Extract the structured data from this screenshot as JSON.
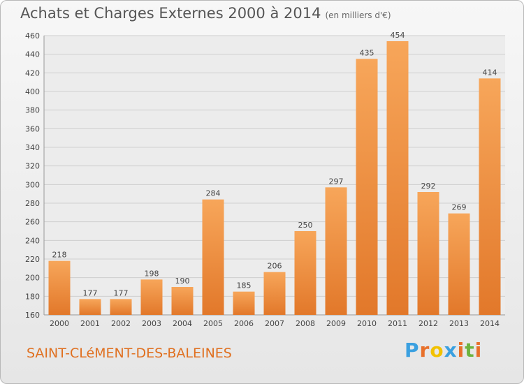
{
  "header": {
    "title": "Achats et Charges Externes 2000 à 2014",
    "unit": "(en milliers d'€)"
  },
  "footer": {
    "commune": "SAINT-CLéMENT-DES-BALEINES",
    "brand": "Proxiti",
    "brand_colors": [
      "#3aa0e0",
      "#e8702a",
      "#f2c200",
      "#3aa0e0",
      "#e8702a",
      "#6db33f",
      "#e8702a"
    ]
  },
  "colors": {
    "bar_light": "#f7a65a",
    "bar_dark": "#e2782a",
    "grid": "#cfcfcf",
    "text": "#444444",
    "commune": "#e07020"
  },
  "chart_data": {
    "type": "bar",
    "categories": [
      "2000",
      "2001",
      "2002",
      "2003",
      "2004",
      "2005",
      "2006",
      "2007",
      "2008",
      "2009",
      "2010",
      "2011",
      "2012",
      "2013",
      "2014"
    ],
    "values": [
      218,
      177,
      177,
      198,
      190,
      284,
      185,
      206,
      250,
      297,
      435,
      454,
      292,
      269,
      414
    ],
    "data_labels": [
      "218",
      "177",
      "177",
      "198",
      "190",
      "284",
      "185",
      "206",
      "250",
      "297",
      "435",
      "454",
      "292",
      "269",
      "414"
    ],
    "ylim": [
      160,
      460
    ],
    "yticks": [
      160,
      180,
      200,
      220,
      240,
      260,
      280,
      300,
      320,
      340,
      360,
      380,
      400,
      420,
      440,
      460
    ],
    "grid": true,
    "title": "Achats et Charges Externes 2000 à 2014",
    "xlabel": "",
    "ylabel": ""
  }
}
